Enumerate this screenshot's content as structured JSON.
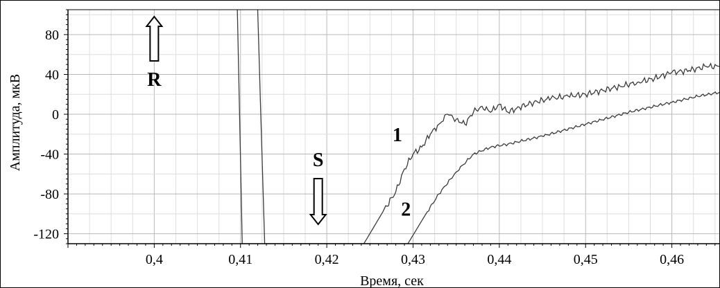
{
  "chart_data": {
    "type": "line",
    "xlabel": "Время, сек",
    "ylabel": "Амплитуда, мкВ",
    "xlim": [
      0.39,
      0.4655
    ],
    "ylim": [
      -130,
      105
    ],
    "x_ticks": [
      "0,4",
      "0,41",
      "0,42",
      "0,43",
      "0,44",
      "0,45",
      "0,46"
    ],
    "x_tick_values": [
      0.4,
      0.41,
      0.42,
      0.43,
      0.44,
      0.45,
      0.46
    ],
    "y_ticks": [
      "80",
      "40",
      "0",
      "-40",
      "-80",
      "-120"
    ],
    "y_tick_values": [
      80,
      40,
      0,
      -40,
      -80,
      -120
    ],
    "grid": true,
    "series": [
      {
        "label": "1",
        "points": [
          [
            0.4095,
            160
          ],
          [
            0.4102,
            -130
          ],
          [
            0.4243,
            -130
          ],
          [
            0.4265,
            -98
          ],
          [
            0.428,
            -78
          ],
          [
            0.429,
            -55
          ],
          [
            0.43,
            -40
          ],
          [
            0.431,
            -33
          ],
          [
            0.432,
            -20
          ],
          [
            0.433,
            -10
          ],
          [
            0.434,
            0
          ],
          [
            0.435,
            -5
          ],
          [
            0.436,
            -10
          ],
          [
            0.437,
            2
          ],
          [
            0.438,
            8
          ],
          [
            0.439,
            2
          ],
          [
            0.44,
            10
          ],
          [
            0.441,
            2
          ],
          [
            0.442,
            6
          ],
          [
            0.444,
            12
          ],
          [
            0.446,
            16
          ],
          [
            0.448,
            18
          ],
          [
            0.45,
            20
          ],
          [
            0.452,
            24
          ],
          [
            0.454,
            28
          ],
          [
            0.456,
            32
          ],
          [
            0.458,
            36
          ],
          [
            0.46,
            42
          ],
          [
            0.462,
            44
          ],
          [
            0.464,
            48
          ],
          [
            0.4655,
            48
          ]
        ]
      },
      {
        "label": "2",
        "points": [
          [
            0.4118,
            160
          ],
          [
            0.4128,
            -130
          ],
          [
            0.4294,
            -130
          ],
          [
            0.4315,
            -100
          ],
          [
            0.433,
            -80
          ],
          [
            0.435,
            -58
          ],
          [
            0.437,
            -40
          ],
          [
            0.439,
            -33
          ],
          [
            0.441,
            -30
          ],
          [
            0.445,
            -22
          ],
          [
            0.45,
            -10
          ],
          [
            0.455,
            2
          ],
          [
            0.46,
            12
          ],
          [
            0.463,
            18
          ],
          [
            0.4655,
            22
          ]
        ]
      }
    ],
    "annotations": [
      {
        "text": "R",
        "x": 0.4,
        "y": 65,
        "arrow": "up"
      },
      {
        "text": "S",
        "x": 0.419,
        "y": -44,
        "arrow": "down"
      },
      {
        "text": "1",
        "x": 0.4285,
        "y": -20
      },
      {
        "text": "2",
        "x": 0.4295,
        "y": -95
      }
    ]
  }
}
